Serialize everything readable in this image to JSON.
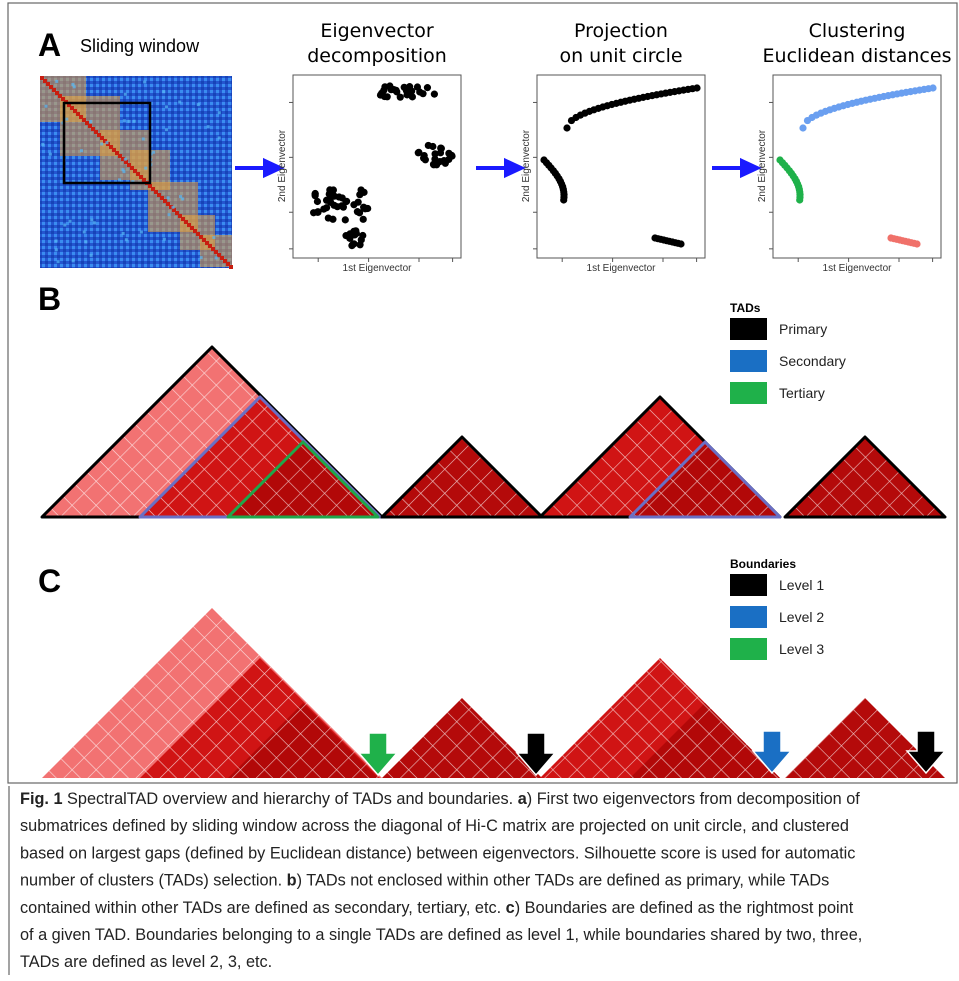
{
  "panel_a": {
    "label": "A",
    "sliding_window": "Sliding window",
    "plots": [
      {
        "title": [
          "Eigenvector",
          "decomposition"
        ],
        "x_label": "1st Eigenvector",
        "y_label": "2nd Eigenvector"
      },
      {
        "title": [
          "Projection",
          "on unit circle"
        ],
        "x_label": "1st Eigenvector",
        "y_label": "2nd Eigenvector"
      },
      {
        "title": [
          "Clustering",
          "Euclidean distances"
        ],
        "x_label": "1st Eigenvector",
        "y_label": "2nd Eigenvector"
      }
    ]
  },
  "panel_b": {
    "label": "B",
    "legend_title": "TADs",
    "legend": [
      "Primary",
      "Secondary",
      "Tertiary"
    ]
  },
  "panel_c": {
    "label": "C",
    "legend_title": "Boundaries",
    "legend": [
      "Level 1",
      "Level 2",
      "Level 3"
    ]
  },
  "caption": [
    [
      {
        "text": "Fig. 1",
        "bold": true
      },
      {
        "text": " SpectralTAD overview and hierarchy of TADs and boundaries. "
      },
      {
        "text": "a",
        "bold": true
      },
      {
        "text": ") First two eigenvectors from decomposition of"
      }
    ],
    [
      {
        "text": "submatrices defined by sliding window across the diagonal of Hi-C matrix are projected on unit circle, and clustered"
      }
    ],
    [
      {
        "text": "based on largest gaps (defined by Euclidean distance) between eigenvectors. Silhouette score is used for automatic"
      }
    ],
    [
      {
        "text": "number of clusters (TADs) selection. "
      },
      {
        "text": "b",
        "bold": true
      },
      {
        "text": ") TADs not enclosed within other TADs are defined as primary, while TADs"
      }
    ],
    [
      {
        "text": "contained within other TADs are defined as secondary, tertiary, etc. "
      },
      {
        "text": "c",
        "bold": true
      },
      {
        "text": ") Boundaries are defined as the rightmost point"
      }
    ],
    [
      {
        "text": "of a given TAD. Boundaries belonging to a single TADs are defined as level 1, while boundaries shared by two, three,"
      }
    ],
    [
      {
        "text": "TADs are defined as level 2, 3, etc."
      }
    ]
  ]
}
